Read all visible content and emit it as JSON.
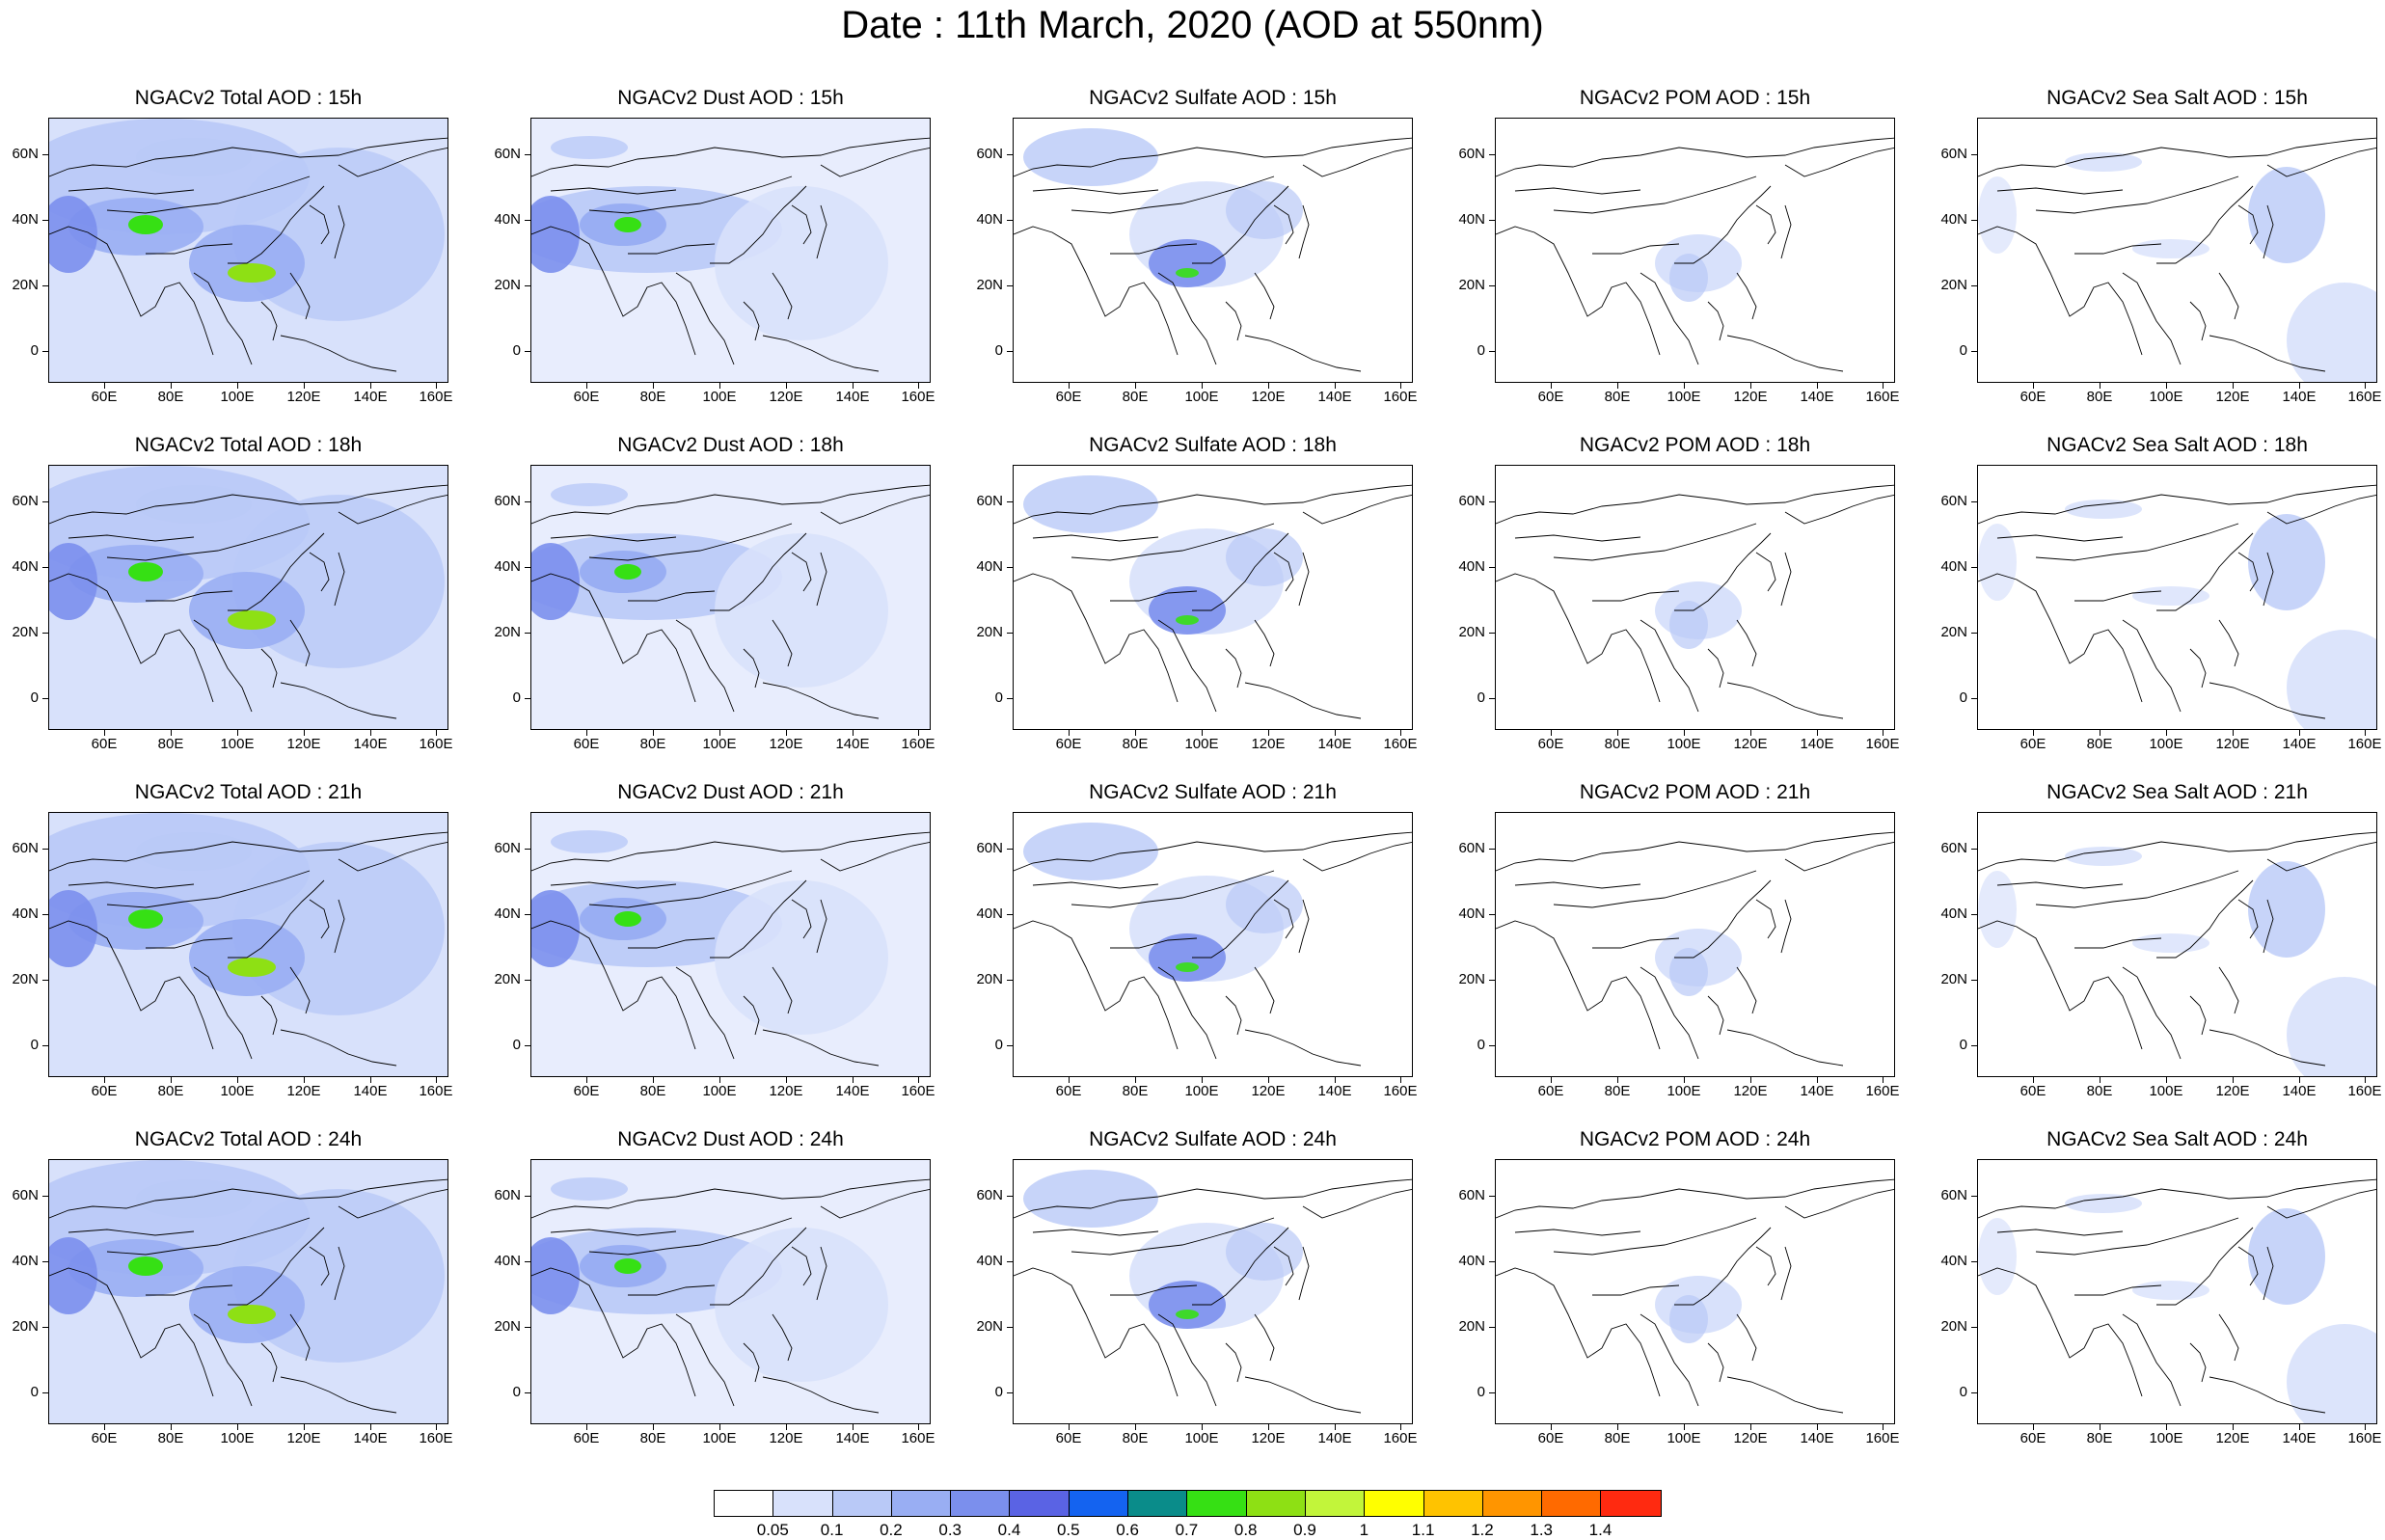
{
  "title": "Date : 11th March, 2020 (AOD at 550nm)",
  "row_hours": [
    "15h",
    "18h",
    "21h",
    "24h"
  ],
  "panels": [
    [
      "NGACv2 Total AOD : 15h",
      "NGACv2 Dust AOD : 15h",
      "NGACv2 Sulfate AOD : 15h",
      "NGACv2 POM AOD : 15h",
      "NGACv2 Sea Salt AOD : 15h"
    ],
    [
      "NGACv2 Total AOD : 18h",
      "NGACv2 Dust AOD : 18h",
      "NGACv2 Sulfate AOD : 18h",
      "NGACv2 POM AOD : 18h",
      "NGACv2 Sea Salt AOD : 18h"
    ],
    [
      "NGACv2 Total AOD : 21h",
      "NGACv2 Dust AOD : 21h",
      "NGACv2 Sulfate AOD : 21h",
      "NGACv2 POM AOD : 21h",
      "NGACv2 Sea Salt AOD : 21h"
    ],
    [
      "NGACv2 Total AOD : 24h",
      "NGACv2 Dust AOD : 24h",
      "NGACv2 Sulfate AOD : 24h",
      "NGACv2 POM AOD : 24h",
      "NGACv2 Sea Salt  AOD : 24h"
    ]
  ],
  "lat_labels": [
    "60N",
    "40N",
    "20N",
    "0"
  ],
  "lon_labels": [
    "60E",
    "80E",
    "100E",
    "120E",
    "140E",
    "160E"
  ],
  "colorbar": {
    "labels": [
      "0.05",
      "0.1",
      "0.2",
      "0.3",
      "0.4",
      "0.5",
      "0.6",
      "0.7",
      "0.8",
      "0.9",
      "1",
      "1.1",
      "1.2",
      "1.3",
      "1.4"
    ],
    "colors": [
      "#ffffff",
      "#d8e1fb",
      "#b9c9f7",
      "#99aef3",
      "#7b8fed",
      "#5a63e4",
      "#1463f0",
      "#0a8c8a",
      "#36e014",
      "#8ee014",
      "#c2f53a",
      "#ffff00",
      "#ffc300",
      "#ff9500",
      "#ff6a00",
      "#ff2a10"
    ]
  }
}
